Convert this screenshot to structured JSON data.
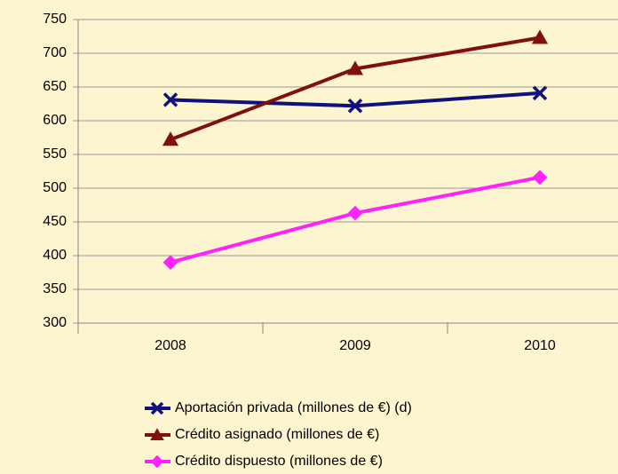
{
  "chart_data": {
    "type": "line",
    "categories": [
      "2008",
      "2009",
      "2010"
    ],
    "series": [
      {
        "name": "Aportación privada (millones de €) (d)",
        "color": "#10107f",
        "marker": "x",
        "values": [
          631,
          622,
          641
        ]
      },
      {
        "name": "Crédito asignado (millones de €)",
        "color": "#7f1010",
        "marker": "triangle",
        "values": [
          572,
          677,
          723
        ]
      },
      {
        "name": "Crédito dispuesto (millones de €)",
        "color": "#ff22ff",
        "marker": "diamond",
        "values": [
          390,
          463,
          516
        ]
      }
    ],
    "ylim": [
      300,
      750
    ],
    "yticks": [
      300,
      350,
      400,
      450,
      500,
      550,
      600,
      650,
      700,
      750
    ],
    "grid": true,
    "legend": "bottom"
  }
}
